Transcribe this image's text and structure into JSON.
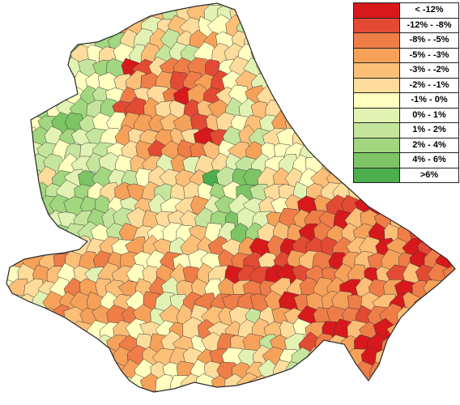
{
  "legend": {
    "classes": [
      {
        "label": "< -12%",
        "color": "#d7191c"
      },
      {
        "label": "-12% - -8%",
        "color": "#e34a33"
      },
      {
        "label": "-8% - -5%",
        "color": "#ef7d48"
      },
      {
        "label": "-5% - -3%",
        "color": "#f6a15a"
      },
      {
        "label": "-3% - -2%",
        "color": "#fbbf78"
      },
      {
        "label": "-2% - -1%",
        "color": "#fedc9b"
      },
      {
        "label": "-1% - 0%",
        "color": "#ffffc0"
      },
      {
        "label": "0% - 1%",
        "color": "#e2f2b3"
      },
      {
        "label": "1% - 2%",
        "color": "#c5e59c"
      },
      {
        "label": "2% - 4%",
        "color": "#a2d67f"
      },
      {
        "label": "4% - 6%",
        "color": "#7dc465"
      },
      {
        "label": ">6%",
        "color": "#4cae4c"
      }
    ]
  },
  "colors": {
    "boundary": "#3a3a3a",
    "background": "#ffffff"
  }
}
